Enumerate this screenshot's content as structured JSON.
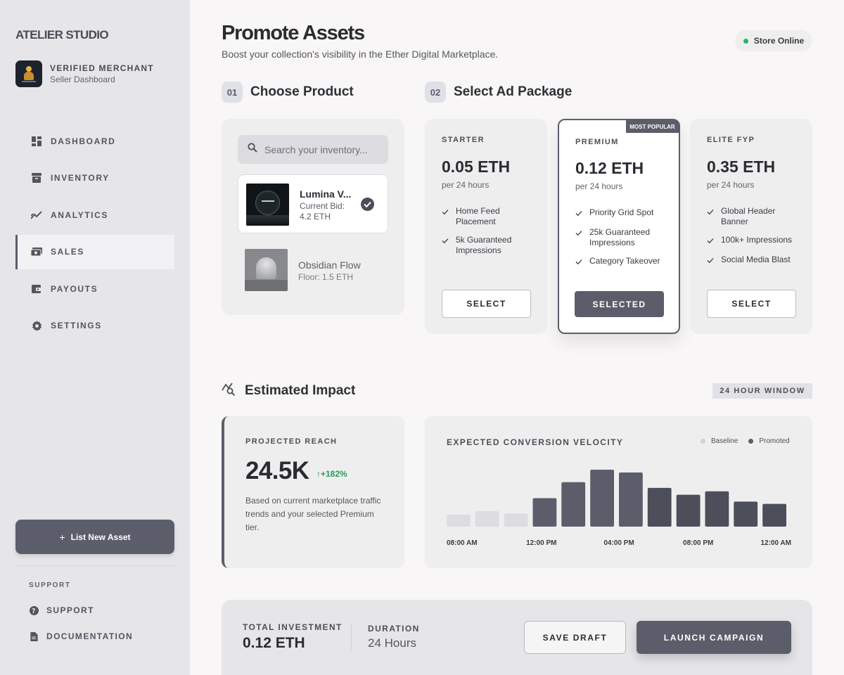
{
  "sidebar": {
    "brand": "ATELIER STUDIO",
    "merchant_title": "VERIFIED MERCHANT",
    "merchant_subtitle": "Seller Dashboard",
    "nav": [
      {
        "label": "DASHBOARD",
        "icon": "dashboard-icon",
        "active": false
      },
      {
        "label": "INVENTORY",
        "icon": "inventory-icon",
        "active": false
      },
      {
        "label": "ANALYTICS",
        "icon": "analytics-icon",
        "active": false
      },
      {
        "label": "SALES",
        "icon": "sales-icon",
        "active": true
      },
      {
        "label": "PAYOUTS",
        "icon": "payouts-icon",
        "active": false
      },
      {
        "label": "SETTINGS",
        "icon": "gear-icon",
        "active": false
      }
    ],
    "list_button": "List New Asset",
    "support_heading": "SUPPORT",
    "support_links": [
      {
        "label": "SUPPORT",
        "icon": "help-icon"
      },
      {
        "label": "DOCUMENTATION",
        "icon": "document-icon"
      }
    ]
  },
  "header": {
    "title": "Promote Assets",
    "subtitle": "Boost your collection's visibility in the Ether Digital Marketplace.",
    "status": "Store Online",
    "status_color": "#28b463"
  },
  "step1": {
    "number": "01",
    "label": "Choose Product",
    "search_placeholder": "Search your inventory...",
    "products": [
      {
        "name": "Lumina V...",
        "meta": "Current Bid: 4.2 ETH",
        "selected": true
      },
      {
        "name": "Obsidian Flow",
        "meta": "Floor: 1.5 ETH",
        "selected": false
      }
    ]
  },
  "step2": {
    "number": "02",
    "label": "Select Ad Package",
    "packages": [
      {
        "tier": "STARTER",
        "price": "0.05 ETH",
        "period": "per 24 hours",
        "features": [
          "Home Feed Placement",
          "5k Guaranteed Impressions"
        ],
        "button": "SELECT",
        "selected": false
      },
      {
        "tier": "PREMIUM",
        "price": "0.12 ETH",
        "period": "per 24 hours",
        "features": [
          "Priority Grid Spot",
          "25k Guaranteed Impressions",
          "Category Takeover"
        ],
        "button": "SELECTED",
        "selected": true,
        "tag": "MOST POPULAR"
      },
      {
        "tier": "ELITE FYP",
        "price": "0.35 ETH",
        "period": "per 24 hours",
        "features": [
          "Global Header Banner",
          "100k+ Impressions",
          "Social Media Blast"
        ],
        "button": "SELECT",
        "selected": false
      }
    ]
  },
  "impact": {
    "title": "Estimated Impact",
    "window": "24 HOUR WINDOW",
    "reach_label": "PROJECTED REACH",
    "reach_value": "24.5K",
    "reach_delta": "+182%",
    "reach_note": "Based on current marketplace traffic trends and your selected Premium tier.",
    "velocity_title": "EXPECTED CONVERSION VELOCITY",
    "legend": [
      {
        "label": "Baseline",
        "color": "#d3d2d6"
      },
      {
        "label": "Promoted",
        "color": "#5b5e6a"
      }
    ]
  },
  "chart_data": {
    "type": "bar",
    "x_ticks": [
      "08:00 AM",
      "12:00 PM",
      "04:00 PM",
      "08:00 PM",
      "12:00 AM"
    ],
    "series": [
      {
        "name": "Baseline",
        "values": [
          21,
          27,
          23,
          null,
          null,
          null,
          null,
          null,
          null,
          null,
          null,
          null
        ]
      },
      {
        "name": "Promoted",
        "values": [
          null,
          null,
          null,
          50,
          78,
          100,
          95,
          68,
          56,
          62,
          44,
          40
        ]
      }
    ],
    "ylim": [
      0,
      100
    ],
    "grid": false,
    "legend_position": "top-right"
  },
  "footer": {
    "investment_label": "TOTAL INVESTMENT",
    "investment_value": "0.12 ETH",
    "duration_label": "DURATION",
    "duration_value": "24 Hours",
    "save_button": "SAVE DRAFT",
    "launch_button": "LAUNCH CAMPAIGN"
  }
}
